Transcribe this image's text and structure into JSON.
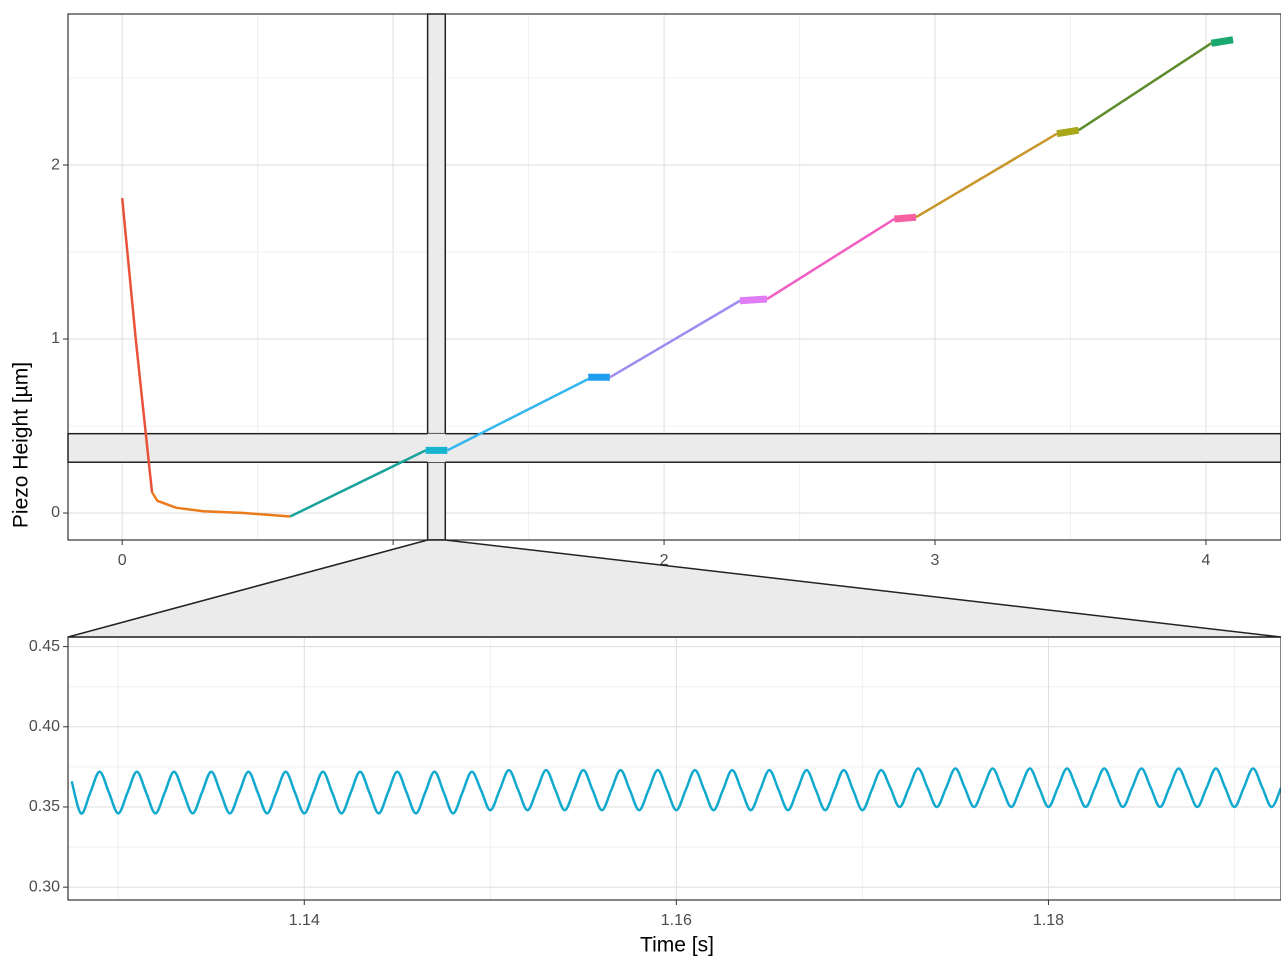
{
  "chart_data": [
    {
      "type": "line",
      "ylabel": "Piezo Height [µm]",
      "xlim": [
        -0.2,
        4.277
      ],
      "ylim": [
        -0.155,
        2.868
      ],
      "xticks": [
        0,
        1,
        2,
        3,
        4
      ],
      "yticks": [
        0,
        1,
        2
      ],
      "xminor": [
        0.5,
        1.5,
        2.5,
        3.5
      ],
      "yminor": [
        0.5,
        1.5,
        2.5
      ],
      "grid": true,
      "series": [
        {
          "color": "#e8513a",
          "linewidth": 2.5,
          "x": [
            0,
            0.05,
            0.11
          ],
          "values": [
            1.81,
            1.0,
            0.12
          ]
        },
        {
          "color": "#ea7a1c",
          "linewidth": 2.5,
          "x": [
            0.11,
            0.13,
            0.2,
            0.3,
            0.45,
            0.62
          ],
          "values": [
            0.12,
            0.07,
            0.03,
            0.01,
            0,
            -0.02
          ]
        },
        {
          "color": "#1aa39a",
          "linewidth": 2.5,
          "x": [
            0.62,
            1.12
          ],
          "values": [
            -0.02,
            0.36
          ]
        },
        {
          "color": "#17b4d0",
          "linewidth": 7,
          "x": [
            1.12,
            1.2
          ],
          "values": [
            0.36,
            0.36
          ]
        },
        {
          "color": "#34b6f0",
          "linewidth": 2.5,
          "x": [
            1.2,
            1.72
          ],
          "values": [
            0.36,
            0.77
          ]
        },
        {
          "color": "#1f9df0",
          "linewidth": 7,
          "x": [
            1.72,
            1.8
          ],
          "values": [
            0.78,
            0.78
          ]
        },
        {
          "color": "#a08cf0",
          "linewidth": 2.5,
          "x": [
            1.8,
            2.28
          ],
          "values": [
            0.78,
            1.22
          ]
        },
        {
          "color": "#e07cf5",
          "linewidth": 7,
          "x": [
            2.28,
            2.38
          ],
          "values": [
            1.22,
            1.23
          ]
        },
        {
          "color": "#f15ec4",
          "linewidth": 2.5,
          "x": [
            2.38,
            2.85
          ],
          "values": [
            1.23,
            1.69
          ]
        },
        {
          "color": "#f660a0",
          "linewidth": 7,
          "x": [
            2.85,
            2.93
          ],
          "values": [
            1.69,
            1.7
          ]
        },
        {
          "color": "#c8962a",
          "linewidth": 2.5,
          "x": [
            2.93,
            3.45
          ],
          "values": [
            1.7,
            2.18
          ]
        },
        {
          "color": "#a8a81a",
          "linewidth": 7,
          "x": [
            3.45,
            3.53
          ],
          "values": [
            2.18,
            2.2
          ]
        },
        {
          "color": "#5d8c2c",
          "linewidth": 2.5,
          "x": [
            3.53,
            4.02
          ],
          "values": [
            2.2,
            2.7
          ]
        },
        {
          "color": "#1aa870",
          "linewidth": 7,
          "x": [
            4.02,
            4.1
          ],
          "values": [
            2.7,
            2.72
          ]
        }
      ]
    },
    {
      "type": "line",
      "xlabel": "Time [s]",
      "smooth": true,
      "xlim": [
        1.1273,
        1.1925
      ],
      "ylim": [
        0.292,
        0.456
      ],
      "xticks": [
        1.14,
        1.16,
        1.18
      ],
      "yticks": [
        {
          "value": 0.3,
          "label": "0.30"
        },
        {
          "value": 0.35,
          "label": "0.35"
        },
        {
          "value": 0.4,
          "label": "0.40"
        },
        {
          "value": 0.45,
          "label": "0.45"
        }
      ],
      "xminor": [
        1.13,
        1.15,
        1.17,
        1.19
      ],
      "yminor": [
        0.325,
        0.375,
        0.425
      ],
      "grid": true,
      "series": [
        {
          "color": "#12a9cf",
          "linewidth": 2.5,
          "x": [
            1.1275,
            1.128,
            1.1285,
            1.129,
            1.1295,
            1.13,
            1.1305,
            1.131,
            1.1315,
            1.132,
            1.1325,
            1.133,
            1.1335,
            1.134,
            1.1345,
            1.135,
            1.1355,
            1.136,
            1.1365,
            1.137,
            1.1375,
            1.138,
            1.1385,
            1.139,
            1.1395,
            1.14,
            1.1405,
            1.141,
            1.1415,
            1.142,
            1.1425,
            1.143,
            1.1435,
            1.144,
            1.1445,
            1.145,
            1.1455,
            1.146,
            1.1465,
            1.147,
            1.1475,
            1.148,
            1.1485,
            1.149,
            1.1495,
            1.15,
            1.1505,
            1.151,
            1.1515,
            1.152,
            1.1525,
            1.153,
            1.1535,
            1.154,
            1.1545,
            1.155,
            1.1555,
            1.156,
            1.1565,
            1.157,
            1.1575,
            1.158,
            1.1585,
            1.159,
            1.1595,
            1.16,
            1.1605,
            1.161,
            1.1615,
            1.162,
            1.1625,
            1.163,
            1.1635,
            1.164,
            1.1645,
            1.165,
            1.1655,
            1.166,
            1.1665,
            1.167,
            1.1675,
            1.168,
            1.1685,
            1.169,
            1.1695,
            1.17,
            1.1705,
            1.171,
            1.1715,
            1.172,
            1.1725,
            1.173,
            1.1735,
            1.174,
            1.1745,
            1.175,
            1.1755,
            1.176,
            1.1765,
            1.177,
            1.1775,
            1.178,
            1.1785,
            1.179,
            1.1795,
            1.18,
            1.1805,
            1.181,
            1.1815,
            1.182,
            1.1825,
            1.183,
            1.1835,
            1.184,
            1.1845,
            1.185,
            1.1855,
            1.186,
            1.1865,
            1.187,
            1.1875,
            1.188,
            1.1885,
            1.189,
            1.1895,
            1.19,
            1.1905,
            1.191,
            1.1915,
            1.192,
            1.1925
          ],
          "values": [
            0.366,
            0.346,
            0.359,
            0.372,
            0.359,
            0.346,
            0.359,
            0.372,
            0.359,
            0.346,
            0.359,
            0.372,
            0.359,
            0.346,
            0.359,
            0.372,
            0.359,
            0.346,
            0.359,
            0.372,
            0.359,
            0.346,
            0.359,
            0.372,
            0.359,
            0.346,
            0.359,
            0.372,
            0.359,
            0.346,
            0.359,
            0.372,
            0.359,
            0.346,
            0.359,
            0.372,
            0.359,
            0.346,
            0.359,
            0.372,
            0.359,
            0.346,
            0.359,
            0.372,
            0.3605,
            0.348,
            0.3605,
            0.373,
            0.3605,
            0.348,
            0.3605,
            0.373,
            0.3605,
            0.348,
            0.3605,
            0.373,
            0.3605,
            0.348,
            0.3605,
            0.373,
            0.3605,
            0.348,
            0.3605,
            0.373,
            0.3605,
            0.348,
            0.3605,
            0.373,
            0.3605,
            0.348,
            0.3605,
            0.373,
            0.3605,
            0.348,
            0.3605,
            0.373,
            0.3605,
            0.348,
            0.3605,
            0.373,
            0.3605,
            0.348,
            0.3605,
            0.373,
            0.3605,
            0.348,
            0.3605,
            0.373,
            0.362,
            0.35,
            0.362,
            0.374,
            0.362,
            0.35,
            0.362,
            0.374,
            0.362,
            0.35,
            0.362,
            0.374,
            0.362,
            0.35,
            0.362,
            0.374,
            0.362,
            0.35,
            0.362,
            0.374,
            0.362,
            0.35,
            0.362,
            0.374,
            0.362,
            0.35,
            0.362,
            0.374,
            0.362,
            0.35,
            0.362,
            0.374,
            0.362,
            0.35,
            0.362,
            0.374,
            0.362,
            0.35,
            0.362,
            0.374,
            0.362,
            0.35,
            0.362
          ]
        }
      ]
    }
  ]
}
